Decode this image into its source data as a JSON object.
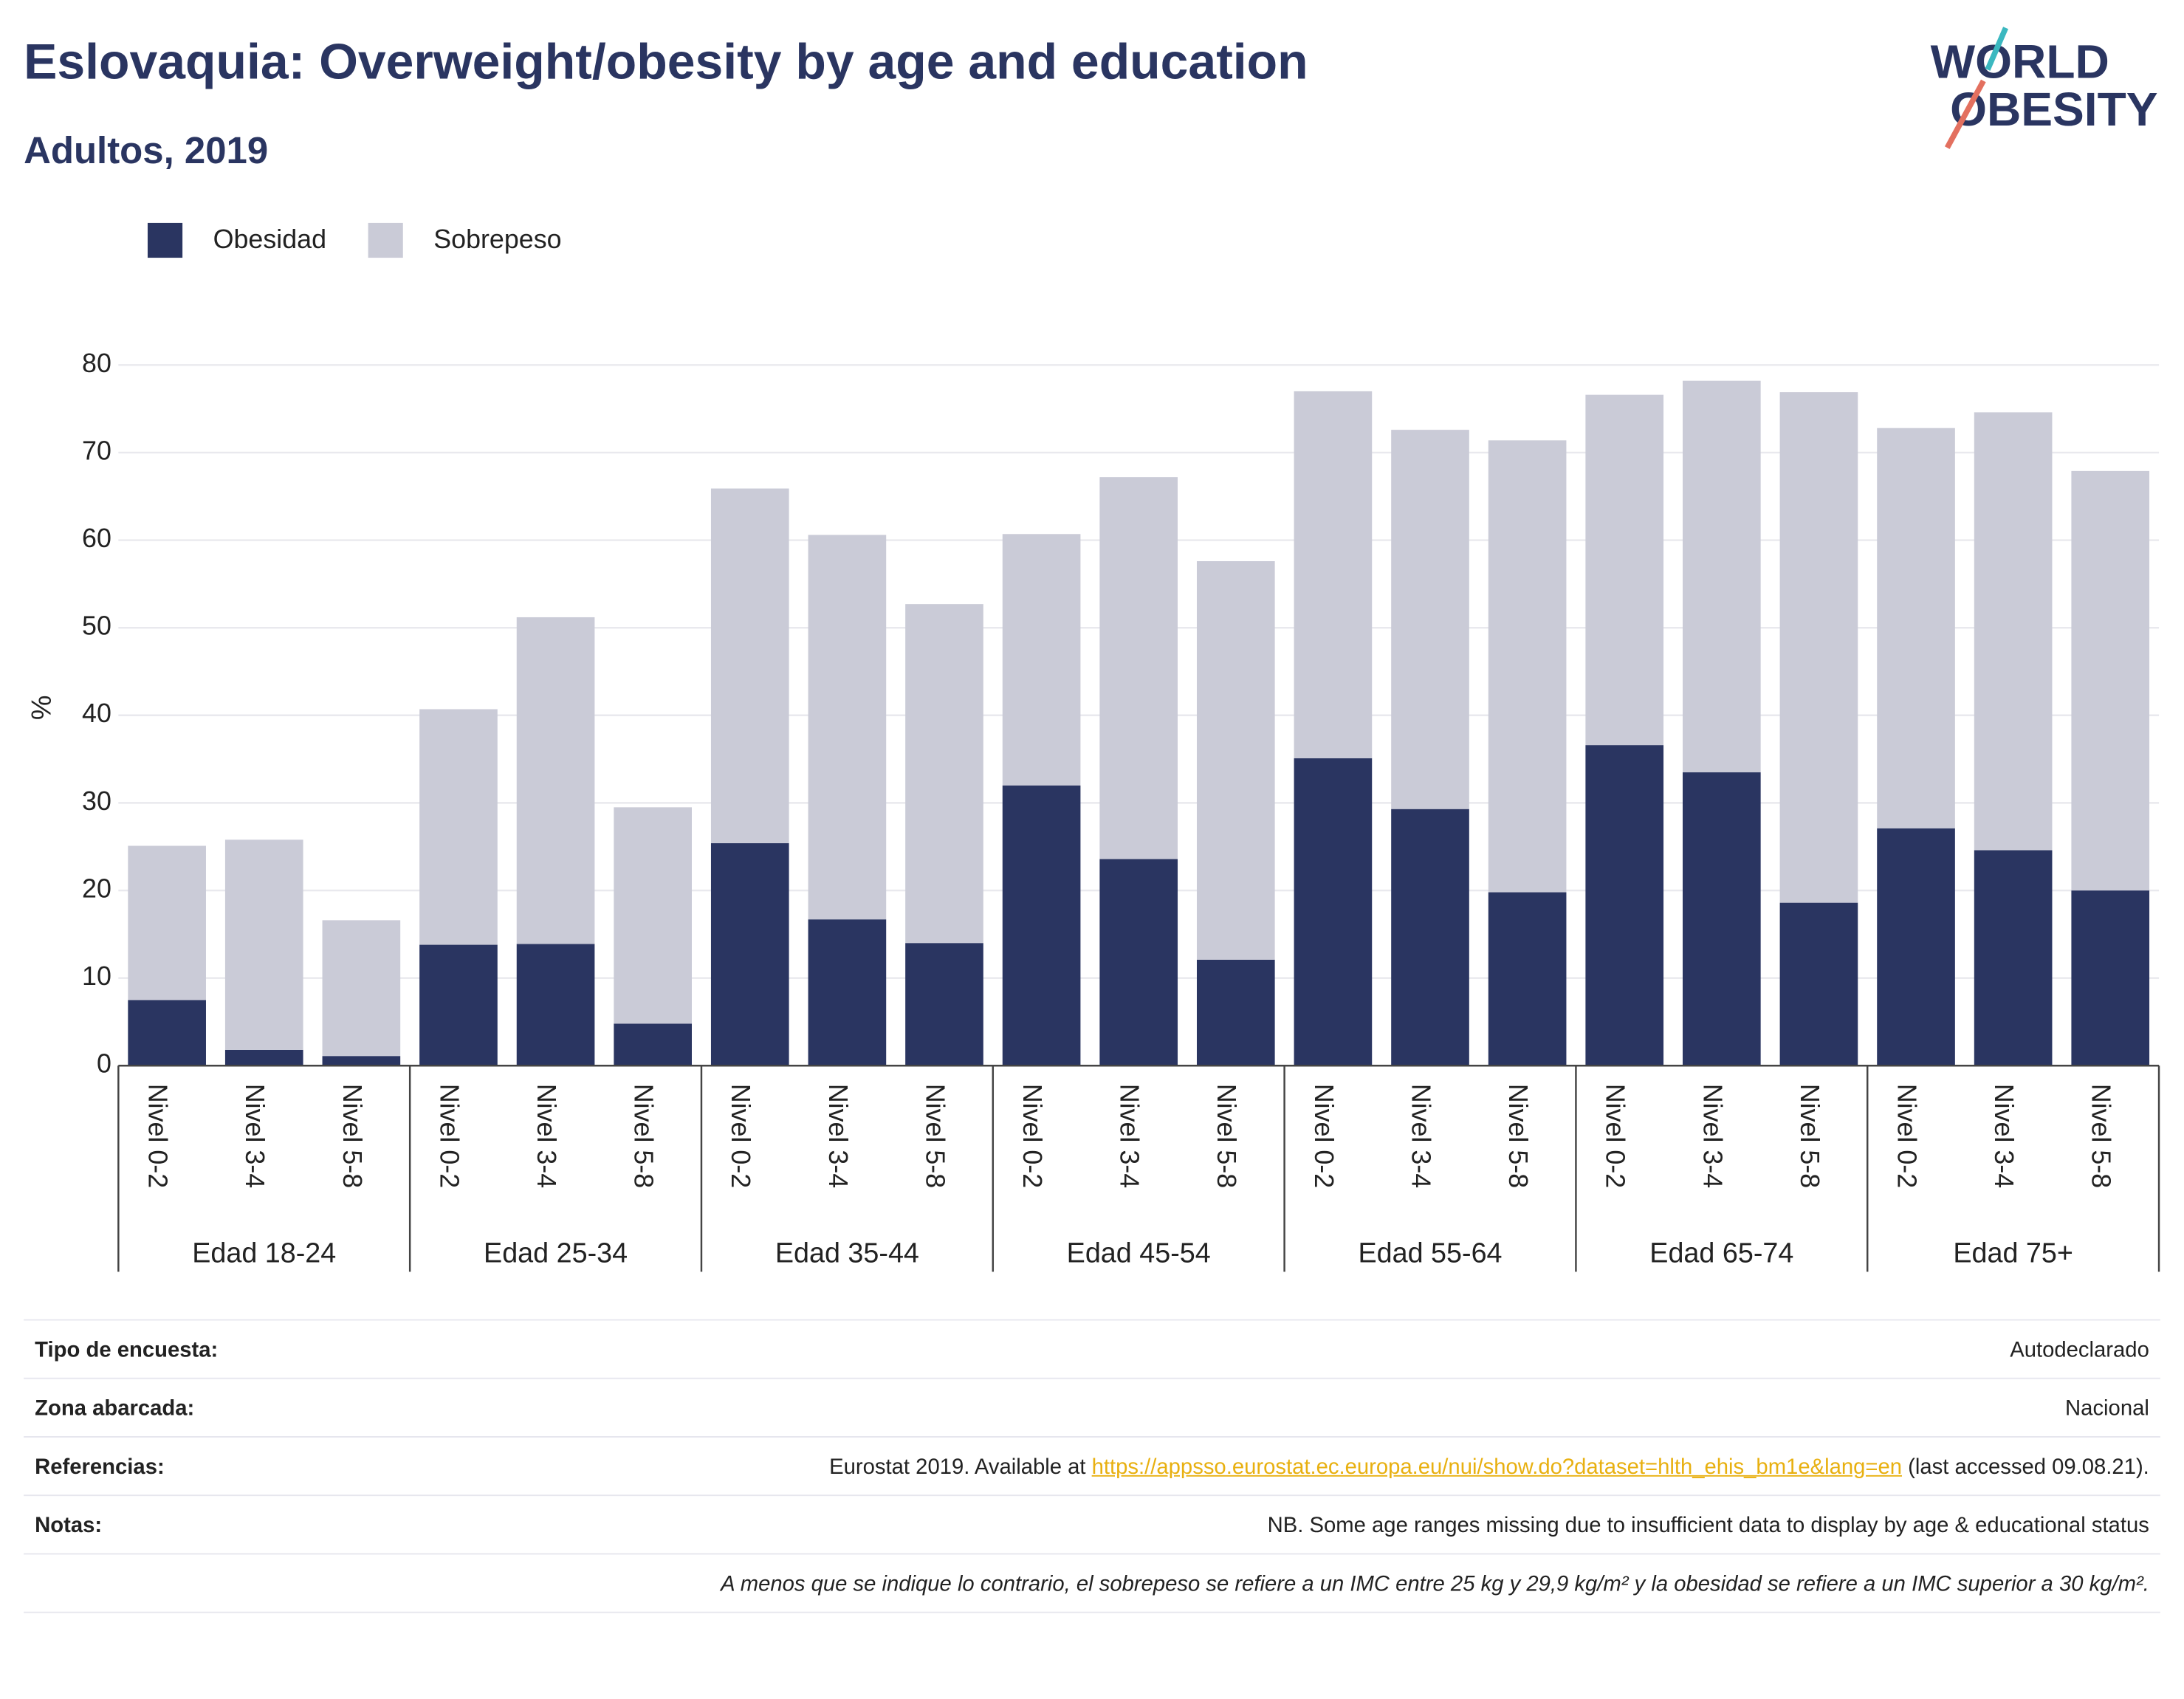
{
  "chart_data": {
    "type": "stacked_bar",
    "title": "Eslovaquia: Overweight/obesity by age and education",
    "subtitle": "Adultos, 2019",
    "logo": [
      "WORLD",
      "OBESITY"
    ],
    "y_label": "%",
    "categories": [
      "Nivel 0-2",
      "Nivel 3-4",
      "Nivel 5-8",
      "Nivel 0-2",
      "Nivel 3-4",
      "Nivel 5-8",
      "Nivel 0-2",
      "Nivel 3-4",
      "Nivel 5-8",
      "Nivel 0-2",
      "Nivel 3-4",
      "Nivel 5-8",
      "Nivel 0-2",
      "Nivel 3-4",
      "Nivel 5-8",
      "Nivel 0-2",
      "Nivel 3-4",
      "Nivel 5-8",
      "Nivel 0-2",
      "Nivel 3-4",
      "Nivel 5-8"
    ],
    "groups": [
      "Edad 18-24",
      "Edad 25-34",
      "Edad 35-44",
      "Edad 45-54",
      "Edad 55-64",
      "Edad 65-74",
      "Edad 75+"
    ],
    "series": [
      {
        "name": "Obesidad",
        "color": "#2a3561",
        "values": [
          7.5,
          1.8,
          1.1,
          13.8,
          13.9,
          4.8,
          25.4,
          16.7,
          14.0,
          32.0,
          23.6,
          12.1,
          35.1,
          29.3,
          19.8,
          36.6,
          33.5,
          18.6,
          27.1,
          24.6,
          20.0
        ]
      },
      {
        "name": "Sobrepeso",
        "color": "#cacbd7",
        "values": [
          17.6,
          24.0,
          15.5,
          26.9,
          37.3,
          24.7,
          40.5,
          43.9,
          38.7,
          28.7,
          43.6,
          45.5,
          41.9,
          43.3,
          51.6,
          40.0,
          44.7,
          58.3,
          45.7,
          50.0,
          47.9
        ]
      }
    ],
    "ylim": [
      0,
      80
    ],
    "yticks": [
      0,
      10,
      20,
      30,
      40,
      50,
      60,
      70,
      80
    ],
    "grid": true,
    "legend": "top-left"
  },
  "footer": {
    "rows": [
      {
        "label": "Tipo de encuesta:",
        "value": "Autodeclarado"
      },
      {
        "label": "Zona abarcada:",
        "value": "Nacional"
      },
      {
        "label": "Referencias:",
        "prefix": "Eurostat 2019. Available at ",
        "link": "https://appsso.eurostat.ec.europa.eu/nui/show.do?dataset=hlth_ehis_bm1e&lang=en",
        "suffix": " (last accessed 09.08.21)."
      },
      {
        "label": "Notas:",
        "value": "NB. Some age ranges missing due to insufficient data to display by age & educational status"
      }
    ],
    "note": "A menos que se indique lo contrario, el sobrepeso se refiere a un IMC entre 25 kg y 29,9 kg/m² y la obesidad se refiere a un IMC superior a 30 kg/m²."
  }
}
